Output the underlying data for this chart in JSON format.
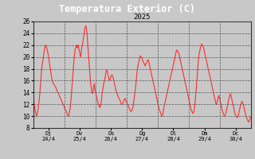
{
  "title": "Temperatura Exterior (C)",
  "subtitle": "2025",
  "fig_bg_color": "#c8c8c8",
  "title_bg_color": "#000000",
  "title_color": "#ffffff",
  "plot_bg_color": "#c8c8c8",
  "line_color": "#ff3333",
  "grid_color": "#555555",
  "tick_color": "#000000",
  "ylim": [
    8.0,
    26.0
  ],
  "yticks": [
    8.0,
    10.0,
    12.0,
    14.0,
    16.0,
    18.0,
    20.0,
    22.0,
    24.0,
    26.0
  ],
  "x_labels": [
    "Dj\n24/4",
    "Dv\n25/4",
    "Ds\n26/4",
    "Dg\n27/4",
    "Dl\n28/4",
    "Dm\n29/4",
    "Dc\n30/4"
  ],
  "n_days": 7,
  "temperatures": [
    13.0,
    12.5,
    11.8,
    11.0,
    10.5,
    10.0,
    10.2,
    10.8,
    11.5,
    12.5,
    13.5,
    15.0,
    16.5,
    17.8,
    18.8,
    19.5,
    20.2,
    21.0,
    21.6,
    22.0,
    21.8,
    21.5,
    21.0,
    20.5,
    19.8,
    19.0,
    18.2,
    17.5,
    16.8,
    16.2,
    15.8,
    15.5,
    15.3,
    15.2,
    15.0,
    14.8,
    14.5,
    14.2,
    14.0,
    13.8,
    13.5,
    13.2,
    13.0,
    12.8,
    12.5,
    12.2,
    12.0,
    11.8,
    11.5,
    11.2,
    11.0,
    10.8,
    10.5,
    10.2,
    10.0,
    10.2,
    10.8,
    11.5,
    12.5,
    14.0,
    15.5,
    17.0,
    18.5,
    19.8,
    20.8,
    21.5,
    21.8,
    22.0,
    21.5,
    22.0,
    21.5,
    21.0,
    20.5,
    20.0,
    21.0,
    21.8,
    22.2,
    23.0,
    23.8,
    24.5,
    25.0,
    25.3,
    24.8,
    23.5,
    22.0,
    20.5,
    19.0,
    17.5,
    16.0,
    15.0,
    14.2,
    13.8,
    14.2,
    15.0,
    15.5,
    14.5,
    14.0,
    13.5,
    13.0,
    12.5,
    12.0,
    11.8,
    11.5,
    11.5,
    12.0,
    12.8,
    13.8,
    14.5,
    15.2,
    15.8,
    16.2,
    16.8,
    17.5,
    17.8,
    17.5,
    17.0,
    16.5,
    16.0,
    16.2,
    16.5,
    16.8,
    17.0,
    16.8,
    16.5,
    16.0,
    15.5,
    15.0,
    14.5,
    14.0,
    13.8,
    13.5,
    13.2,
    13.0,
    12.8,
    12.5,
    12.2,
    12.0,
    12.0,
    12.2,
    12.5,
    12.8,
    13.0,
    12.8,
    12.5,
    12.2,
    12.0,
    11.8,
    11.5,
    11.2,
    11.0,
    10.8,
    10.8,
    11.0,
    11.5,
    12.0,
    12.8,
    13.5,
    14.5,
    15.5,
    16.8,
    17.8,
    18.5,
    19.0,
    19.5,
    20.0,
    20.2,
    20.0,
    19.8,
    19.5,
    19.2,
    19.0,
    18.8,
    18.5,
    18.8,
    19.0,
    19.2,
    19.5,
    19.5,
    19.0,
    18.5,
    18.0,
    17.5,
    17.0,
    16.5,
    16.0,
    15.5,
    15.0,
    14.5,
    14.0,
    13.5,
    13.0,
    12.5,
    12.0,
    11.5,
    11.0,
    10.8,
    10.5,
    10.2,
    10.0,
    10.2,
    10.8,
    11.5,
    12.0,
    12.5,
    13.0,
    13.5,
    14.0,
    14.5,
    15.0,
    15.5,
    16.0,
    16.5,
    17.0,
    17.5,
    18.0,
    18.5,
    19.0,
    19.5,
    20.0,
    20.5,
    21.0,
    21.2,
    21.0,
    20.8,
    20.5,
    20.0,
    19.5,
    19.0,
    18.5,
    18.0,
    17.5,
    17.0,
    16.5,
    16.0,
    15.5,
    15.0,
    14.5,
    14.0,
    13.5,
    13.0,
    12.5,
    12.0,
    11.5,
    11.0,
    10.8,
    10.5,
    10.5,
    10.8,
    11.5,
    12.5,
    13.8,
    15.2,
    16.8,
    18.2,
    19.5,
    20.5,
    21.0,
    21.5,
    22.0,
    22.2,
    22.0,
    21.8,
    21.5,
    21.0,
    20.5,
    20.0,
    19.5,
    19.0,
    18.5,
    18.0,
    17.5,
    17.0,
    16.5,
    16.0,
    15.5,
    15.0,
    14.5,
    14.0,
    13.5,
    13.0,
    12.5,
    12.0,
    12.0,
    12.5,
    13.0,
    13.5,
    13.2,
    12.8,
    12.2,
    11.8,
    11.2,
    10.8,
    10.5,
    10.2,
    10.0,
    10.2,
    10.5,
    11.0,
    11.5,
    12.0,
    12.5,
    13.0,
    13.5,
    13.8,
    13.5,
    13.0,
    12.5,
    12.0,
    11.5,
    11.0,
    10.5,
    10.2,
    10.0,
    9.8,
    9.8,
    10.0,
    10.5,
    11.0,
    11.5,
    12.0,
    12.2,
    12.5,
    12.2,
    12.0,
    11.5,
    11.0,
    10.5,
    10.0,
    9.8,
    9.5,
    9.2,
    9.0,
    9.2,
    9.5,
    9.8,
    10.0
  ]
}
